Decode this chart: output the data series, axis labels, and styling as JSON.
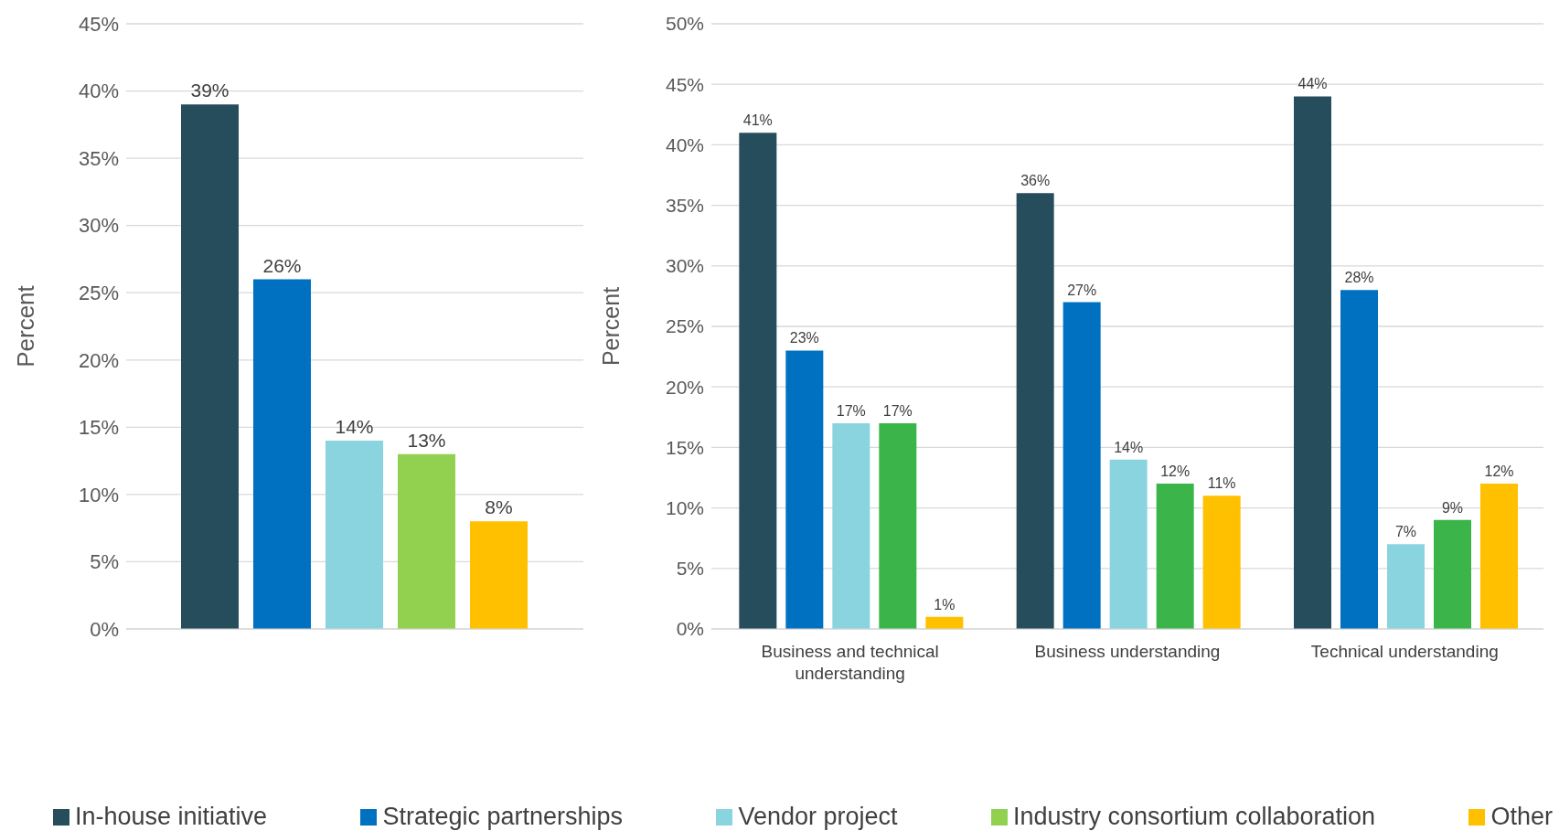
{
  "chart_data": [
    {
      "type": "bar",
      "ylabel": "Percent",
      "categories": [
        null
      ],
      "series": [
        {
          "name": "In-house initiative",
          "color": "#264d5c",
          "values": [
            39
          ],
          "value_labels": [
            "39%"
          ]
        },
        {
          "name": "Strategic partnerships",
          "color": "#0070c0",
          "values": [
            26
          ],
          "value_labels": [
            "26%"
          ]
        },
        {
          "name": "Vendor project",
          "color": "#8ad4e0",
          "values": [
            14
          ],
          "value_labels": [
            "14%"
          ]
        },
        {
          "name": "Industry consortium collaboration",
          "color": "#92d050",
          "values": [
            13
          ],
          "value_labels": [
            "13%"
          ]
        },
        {
          "name": "Other",
          "color": "#ffc000",
          "values": [
            8
          ],
          "value_labels": [
            "8%"
          ]
        }
      ],
      "ylim": [
        0,
        45
      ],
      "yticks": [
        {
          "value": 0,
          "label": "0%"
        },
        {
          "value": 5,
          "label": "5%"
        },
        {
          "value": 10,
          "label": "10%"
        },
        {
          "value": 15,
          "label": "15%"
        },
        {
          "value": 20,
          "label": "20%"
        },
        {
          "value": 25,
          "label": "25%"
        },
        {
          "value": 30,
          "label": "30%"
        },
        {
          "value": 35,
          "label": "35%"
        },
        {
          "value": 40,
          "label": "40%"
        },
        {
          "value": 45,
          "label": "45%"
        }
      ],
      "grid": "y",
      "legend": "bottom"
    },
    {
      "type": "bar",
      "ylabel": "Percent",
      "categories": [
        "Business and technical understanding",
        "Business understanding",
        "Technical understanding"
      ],
      "series": [
        {
          "color": "#264d5c",
          "values": [
            41,
            36,
            44
          ],
          "value_labels": [
            "41%",
            "36%",
            "44%"
          ]
        },
        {
          "color": "#0070c0",
          "values": [
            23,
            27,
            28
          ],
          "value_labels": [
            "23%",
            "27%",
            "28%"
          ]
        },
        {
          "color": "#8ad4e0",
          "values": [
            17,
            14,
            7
          ],
          "value_labels": [
            "17%",
            "14%",
            "7%"
          ]
        },
        {
          "color": "#3bb54a",
          "values": [
            17,
            12,
            9
          ],
          "value_labels": [
            "17%",
            "12%",
            "9%"
          ]
        },
        {
          "color": "#ffc000",
          "values": [
            1,
            11,
            12
          ],
          "value_labels": [
            "1%",
            "11%",
            "12%"
          ]
        }
      ],
      "ylim": [
        0,
        50
      ],
      "yticks": [
        {
          "value": 0,
          "label": "0%"
        },
        {
          "value": 5,
          "label": "5%"
        },
        {
          "value": 10,
          "label": "10%"
        },
        {
          "value": 15,
          "label": "15%"
        },
        {
          "value": 20,
          "label": "20%"
        },
        {
          "value": 25,
          "label": "25%"
        },
        {
          "value": 30,
          "label": "30%"
        },
        {
          "value": 35,
          "label": "35%"
        },
        {
          "value": 40,
          "label": "40%"
        },
        {
          "value": 45,
          "label": "45%"
        },
        {
          "value": 50,
          "label": "50%"
        }
      ],
      "grid": "y"
    }
  ]
}
